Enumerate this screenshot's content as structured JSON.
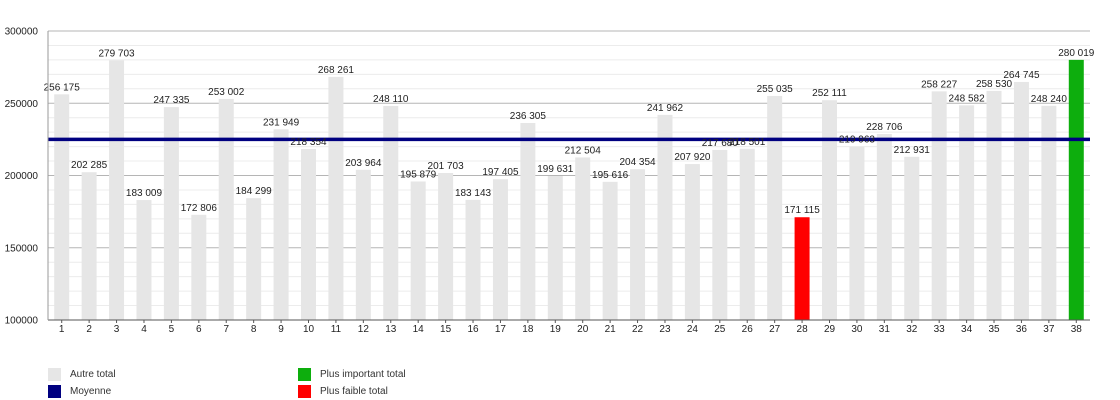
{
  "chart_data": {
    "type": "bar",
    "categories": [
      "1",
      "2",
      "3",
      "4",
      "5",
      "6",
      "7",
      "8",
      "9",
      "10",
      "11",
      "12",
      "13",
      "14",
      "15",
      "16",
      "17",
      "18",
      "19",
      "20",
      "21",
      "22",
      "23",
      "24",
      "25",
      "26",
      "27",
      "28",
      "29",
      "30",
      "31",
      "32",
      "33",
      "34",
      "35",
      "36",
      "37",
      "38"
    ],
    "values": [
      256175,
      202285,
      279703,
      183009,
      247335,
      172806,
      253002,
      184299,
      231949,
      218354,
      268261,
      203964,
      248110,
      195879,
      201703,
      183143,
      197405,
      236305,
      199631,
      212504,
      195616,
      204354,
      241962,
      207920,
      217680,
      218501,
      255035,
      171115,
      252111,
      219963,
      228706,
      212931,
      258227,
      248582,
      258530,
      264745,
      248240,
      280019
    ],
    "value_labels": [
      "256 175",
      "202 285",
      "279 703",
      "183 009",
      "247 335",
      "172 806",
      "253 002",
      "184 299",
      "231 949",
      "218 354",
      "268 261",
      "203 964",
      "248 110",
      "195 879",
      "201 703",
      "183 143",
      "197 405",
      "236 305",
      "199 631",
      "212 504",
      "195 616",
      "204 354",
      "241 962",
      "207 920",
      "217 680",
      "218 501",
      "255 035",
      "171 115",
      "252 111",
      "219 963",
      "228 706",
      "212 931",
      "258 227",
      "248 582",
      "258 530",
      "264 745",
      "248 240",
      "280 019"
    ],
    "average": 225000,
    "ylim": [
      100000,
      300000
    ],
    "yticks": [
      100000,
      150000,
      200000,
      250000,
      300000
    ],
    "ytick_labels": [
      "100000",
      "150000",
      "200000",
      "250000",
      "300000"
    ],
    "grid": true,
    "title": "",
    "xlabel": "",
    "ylabel": "",
    "max_index": 37,
    "min_index": 27,
    "colors": {
      "other": "#e6e6e6",
      "max": "#0dae0d",
      "min": "#ff0000",
      "average": "#000080",
      "grid": "#cccccc",
      "axis": "#555555",
      "text": "#222222"
    },
    "legend": {
      "placement": "bottom-left",
      "items": [
        {
          "label": "Autre total",
          "color": "#e6e6e6"
        },
        {
          "label": "Moyenne",
          "color": "#000080"
        },
        {
          "label": "Plus important total",
          "color": "#0dae0d"
        },
        {
          "label": "Plus faible total",
          "color": "#ff0000"
        }
      ]
    }
  }
}
